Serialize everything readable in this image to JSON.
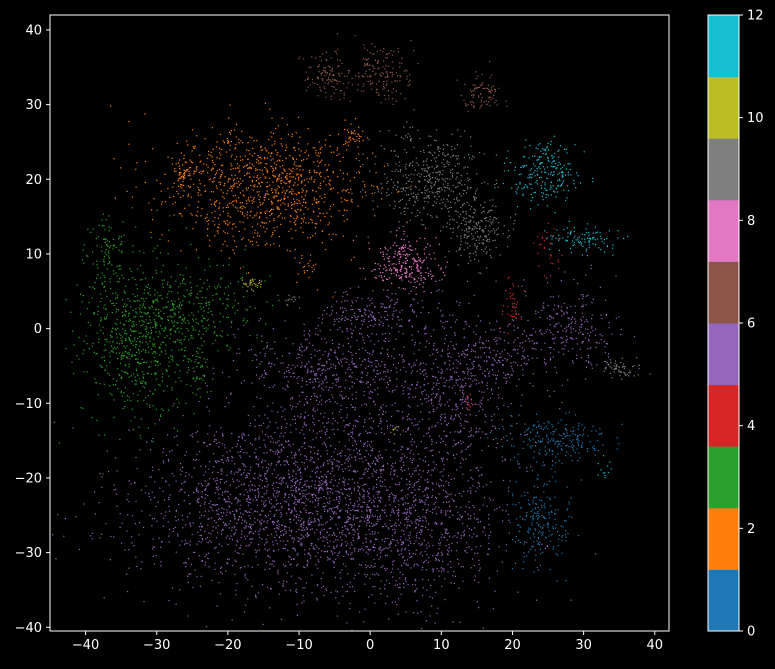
{
  "chart_data": {
    "type": "scatter",
    "title": "",
    "xlabel": "",
    "ylabel": "",
    "xlim": [
      -45,
      42
    ],
    "ylim": [
      -40.5,
      42
    ],
    "x_ticks": [
      -40,
      -30,
      -20,
      -10,
      0,
      10,
      20,
      30,
      40
    ],
    "y_ticks": [
      -40,
      -30,
      -20,
      -10,
      0,
      10,
      20,
      30,
      40
    ],
    "grid": false,
    "background": "#000000",
    "colorbar": {
      "range": [
        0,
        12
      ],
      "ticks": [
        0,
        2,
        4,
        6,
        8,
        10,
        12
      ],
      "colors": [
        "#1f77b4",
        "#ff7f0e",
        "#2ca02c",
        "#d62728",
        "#9467bd",
        "#8c564b",
        "#e377c2",
        "#7f7f7f",
        "#bcbd22",
        "#17becf"
      ]
    },
    "clusters": [
      {
        "label": 4,
        "color": "#9467bd",
        "cx": -12,
        "cy": -24,
        "sx": 11,
        "sy": 6,
        "n": 1800
      },
      {
        "label": 4,
        "color": "#9467bd",
        "cx": -3,
        "cy": -18,
        "sx": 9,
        "sy": 8,
        "n": 900
      },
      {
        "label": 4,
        "color": "#9467bd",
        "cx": 8,
        "cy": -27,
        "sx": 6,
        "sy": 5,
        "n": 500
      },
      {
        "label": 4,
        "color": "#9467bd",
        "cx": -5,
        "cy": -5,
        "sx": 6,
        "sy": 3,
        "n": 400
      },
      {
        "label": 4,
        "color": "#9467bd",
        "cx": 12,
        "cy": -8,
        "sx": 4,
        "sy": 6,
        "n": 450
      },
      {
        "label": 4,
        "color": "#9467bd",
        "cx": 0,
        "cy": 2,
        "sx": 4,
        "sy": 1.5,
        "n": 180
      },
      {
        "label": 4,
        "color": "#9467bd",
        "cx": 18,
        "cy": -4,
        "sx": 3,
        "sy": 2.5,
        "n": 160
      },
      {
        "label": 4,
        "color": "#9467bd",
        "cx": 28,
        "cy": 0,
        "sx": 3.5,
        "sy": 3,
        "n": 260
      },
      {
        "label": 1,
        "color": "#ff7f0e",
        "cx": -15,
        "cy": 19,
        "sx": 7,
        "sy": 4,
        "n": 1000
      },
      {
        "label": 1,
        "color": "#ff7f0e",
        "cx": -26,
        "cy": 21,
        "sx": 1.2,
        "sy": 1.2,
        "n": 60
      },
      {
        "label": 1,
        "color": "#ff7f0e",
        "cx": -2.5,
        "cy": 25.5,
        "sx": 0.9,
        "sy": 0.9,
        "n": 35
      },
      {
        "label": 1,
        "color": "#ff7f0e",
        "cx": -9,
        "cy": 8.5,
        "sx": 0.8,
        "sy": 0.8,
        "n": 20
      },
      {
        "label": 2,
        "color": "#2ca02c",
        "cx": -33,
        "cy": -1,
        "sx": 4,
        "sy": 5.5,
        "n": 700
      },
      {
        "label": 2,
        "color": "#2ca02c",
        "cx": -24,
        "cy": 2,
        "sx": 4,
        "sy": 3,
        "n": 250
      },
      {
        "label": 2,
        "color": "#2ca02c",
        "cx": -37,
        "cy": 10,
        "sx": 1.5,
        "sy": 2.5,
        "n": 90
      },
      {
        "label": 2,
        "color": "#2ca02c",
        "cx": -24,
        "cy": -6,
        "sx": 1,
        "sy": 1.5,
        "n": 40
      },
      {
        "label": 7,
        "color": "#7f7f7f",
        "cx": 8,
        "cy": 20,
        "sx": 3.5,
        "sy": 3,
        "n": 450
      },
      {
        "label": 7,
        "color": "#7f7f7f",
        "cx": 15,
        "cy": 13.5,
        "sx": 2,
        "sy": 2.5,
        "n": 230
      },
      {
        "label": 7,
        "color": "#7f7f7f",
        "cx": 35,
        "cy": -5.5,
        "sx": 1.5,
        "sy": 0.6,
        "n": 60
      },
      {
        "label": 7,
        "color": "#7f7f7f",
        "cx": -11,
        "cy": 4,
        "sx": 0.7,
        "sy": 0.4,
        "n": 12
      },
      {
        "label": 9,
        "color": "#17becf",
        "cx": 24.5,
        "cy": 21,
        "sx": 2.5,
        "sy": 2,
        "n": 230
      },
      {
        "label": 9,
        "color": "#17becf",
        "cx": 30,
        "cy": 12,
        "sx": 2.5,
        "sy": 0.9,
        "n": 100
      },
      {
        "label": 9,
        "color": "#17becf",
        "cx": 33,
        "cy": -18.5,
        "sx": 0.4,
        "sy": 0.8,
        "n": 12
      },
      {
        "label": 0,
        "color": "#1f77b4",
        "cx": 26,
        "cy": -15,
        "sx": 3.5,
        "sy": 1.5,
        "n": 220
      },
      {
        "label": 0,
        "color": "#1f77b4",
        "cx": 24,
        "cy": -26,
        "sx": 2,
        "sy": 3,
        "n": 200
      },
      {
        "label": 6,
        "color": "#e377c2",
        "cx": 5,
        "cy": 8.5,
        "sx": 2.6,
        "sy": 1.7,
        "n": 260
      },
      {
        "label": 5,
        "color": "#8c564b",
        "cx": -6,
        "cy": 34,
        "sx": 1.6,
        "sy": 1.6,
        "n": 120
      },
      {
        "label": 5,
        "color": "#8c564b",
        "cx": 1.5,
        "cy": 34.5,
        "sx": 2,
        "sy": 2,
        "n": 160
      },
      {
        "label": 5,
        "color": "#8c564b",
        "cx": 15.5,
        "cy": 31.5,
        "sx": 1.5,
        "sy": 1.3,
        "n": 90
      },
      {
        "label": 8,
        "color": "#bcbd22",
        "cx": -17,
        "cy": 6,
        "sx": 0.9,
        "sy": 0.4,
        "n": 30
      },
      {
        "label": 8,
        "color": "#bcbd22",
        "cx": 3.5,
        "cy": -13.5,
        "sx": 0.3,
        "sy": 0.4,
        "n": 6
      },
      {
        "label": 3,
        "color": "#d62728",
        "cx": 20,
        "cy": 3.5,
        "sx": 0.7,
        "sy": 1.5,
        "n": 45
      },
      {
        "label": 3,
        "color": "#d62728",
        "cx": 25,
        "cy": 11,
        "sx": 1.2,
        "sy": 1.8,
        "n": 30
      },
      {
        "label": 3,
        "color": "#d62728",
        "cx": 14,
        "cy": -10,
        "sx": 0.5,
        "sy": 0.5,
        "n": 12
      }
    ]
  }
}
